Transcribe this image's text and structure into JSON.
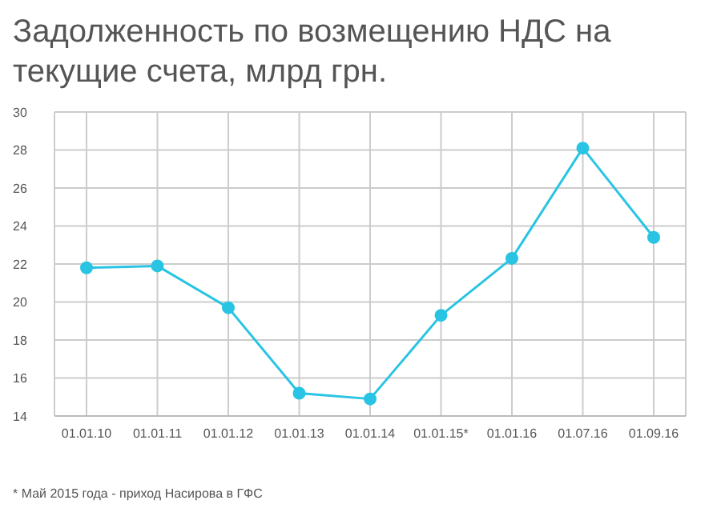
{
  "chart_data": {
    "type": "line",
    "title": "Задолженность по возмещению НДС на текущие счета, млрд грн.",
    "categories": [
      "01.01.10",
      "01.01.11",
      "01.01.12",
      "01.01.13",
      "01.01.14",
      "01.01.15*",
      "01.01.16",
      "01.07.16",
      "01.09.16"
    ],
    "series": [
      {
        "color": "#29c4e3",
        "values": [
          21.8,
          21.9,
          19.7,
          15.2,
          14.9,
          19.3,
          22.3,
          28.1,
          23.4
        ]
      }
    ],
    "ylim": [
      14,
      30
    ],
    "yticks": [
      14,
      16,
      18,
      20,
      22,
      24,
      26,
      28,
      30
    ],
    "grid": true,
    "marker": "circle",
    "line_style": "solid",
    "legend": false,
    "annotations": [
      "* Май 2015 года - приход Насирова в ГФС"
    ]
  }
}
